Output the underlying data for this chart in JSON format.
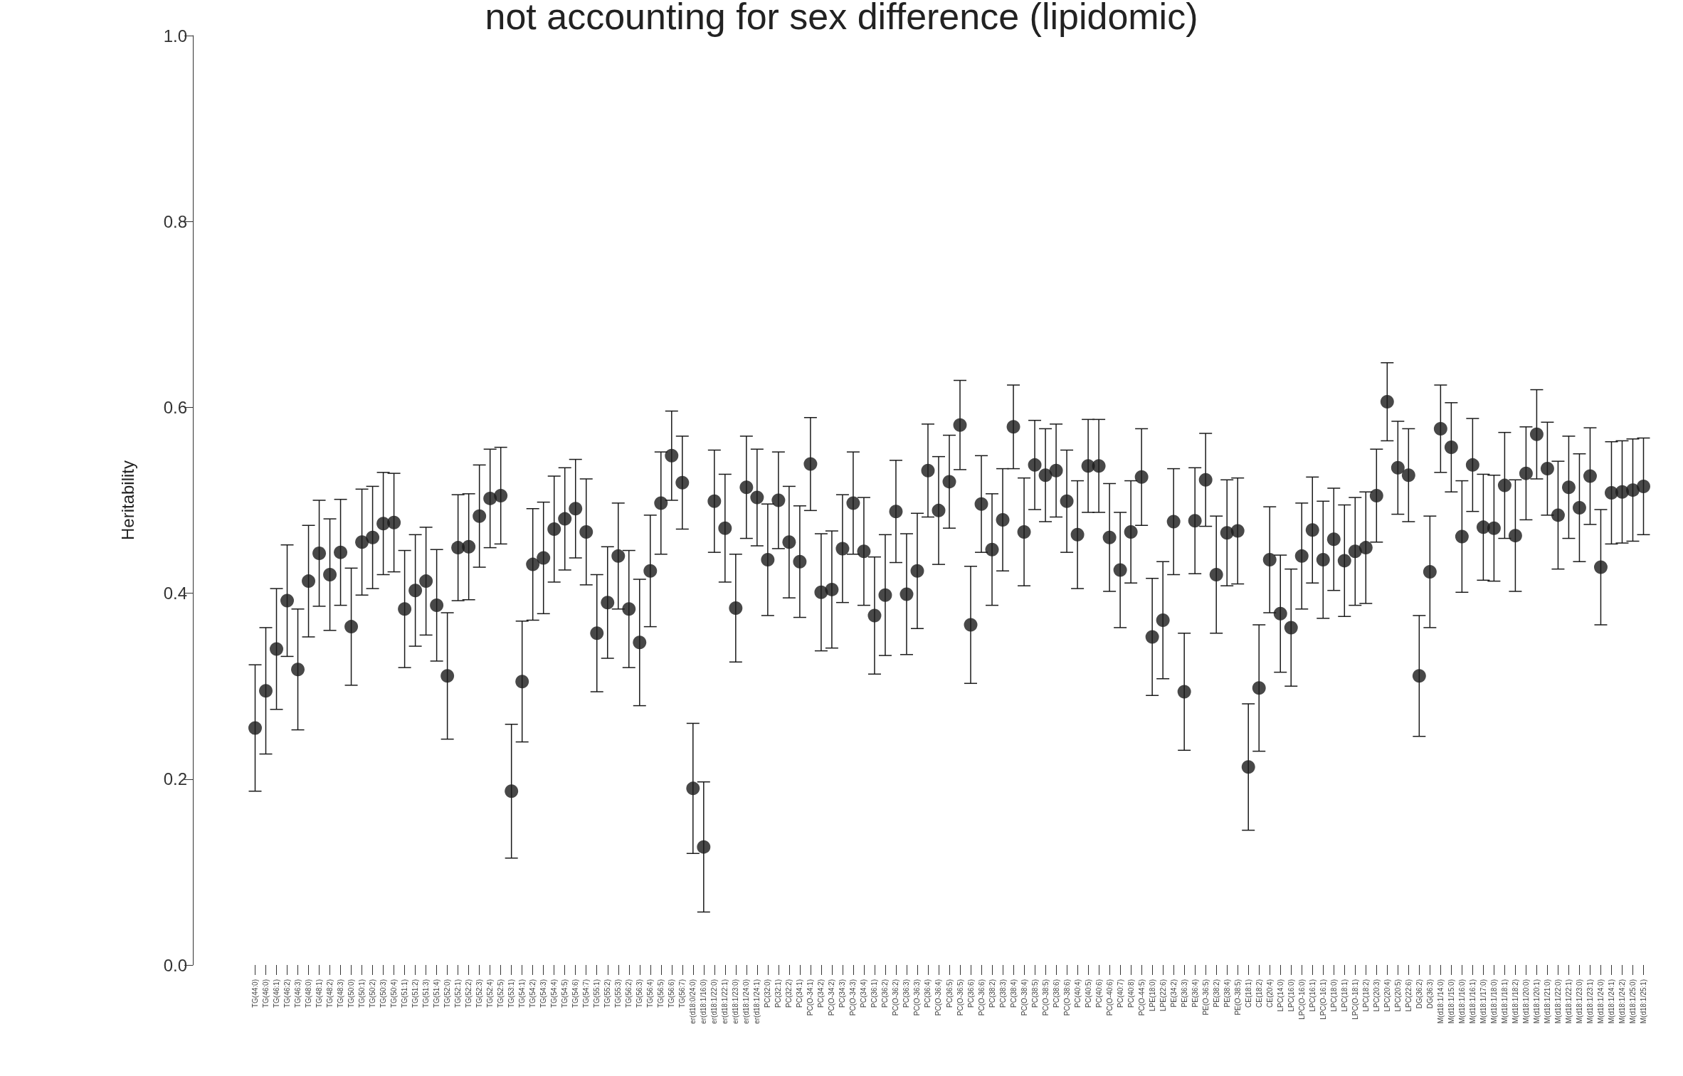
{
  "chart_data": {
    "type": "scatter",
    "title": "not accounting for sex difference (lipidomic)",
    "ylabel": "Heritability",
    "categories": [
      "TG(44:0)",
      "TG(46:0)",
      "TG(46:1)",
      "TG(46:2)",
      "TG(46:3)",
      "TG(48:0)",
      "TG(48:1)",
      "TG(48:2)",
      "TG(48:3)",
      "TG(50:0)",
      "TG(50:1)",
      "TG(50:2)",
      "TG(50:3)",
      "TG(50:4)",
      "TG(51:1)",
      "TG(51:2)",
      "TG(51:3)",
      "TG(51:4)",
      "TG(52:0)",
      "TG(52:1)",
      "TG(52:2)",
      "TG(52:3)",
      "TG(52:4)",
      "TG(52:5)",
      "TG(53:1)",
      "TG(54:1)",
      "TG(54:2)",
      "TG(54:3)",
      "TG(54:4)",
      "TG(54:5)",
      "TG(54:6)",
      "TG(54:7)",
      "TG(55:1)",
      "TG(55:2)",
      "TG(55:3)",
      "TG(56:2)",
      "TG(56:3)",
      "TG(56:4)",
      "TG(56:5)",
      "TG(56:6)",
      "TG(56:7)",
      "er(d18:0/24:0)",
      "er(d18:1/16:0)",
      "er(d18:1/22:0)",
      "er(d18:1/22:1)",
      "er(d18:1/23:0)",
      "er(d18:1/24:0)",
      "er(d18:1/24:1)",
      "PC(32:0)",
      "PC(32:1)",
      "PC(32:2)",
      "PC(34:1)",
      "PC(O-34:1)",
      "PC(34:2)",
      "PC(O-34:2)",
      "PC(34:3)",
      "PC(O-34:3)",
      "PC(34:4)",
      "PC(36:1)",
      "PC(36:2)",
      "PC(O-36:2)",
      "PC(36:3)",
      "PC(O-36:3)",
      "PC(36:4)",
      "PC(O-36:4)",
      "PC(36:5)",
      "PC(O-36:5)",
      "PC(36:6)",
      "PC(O-36:6)",
      "PC(38:2)",
      "PC(38:3)",
      "PC(38:4)",
      "PC(O-38:4)",
      "PC(38:5)",
      "PC(O-38:5)",
      "PC(38:6)",
      "PC(O-38:6)",
      "PC(40:4)",
      "PC(40:5)",
      "PC(40:6)",
      "PC(O-40:6)",
      "PC(40:7)",
      "PC(40:8)",
      "PC(O-44:5)",
      "LPE(18:0)",
      "LPE(22:6)",
      "PE(34:2)",
      "PE(36:3)",
      "PE(36:4)",
      "PE(O-36:5)",
      "PE(38:2)",
      "PE(38:4)",
      "PE(O-38:5)",
      "CE(18:1)",
      "CE(18:2)",
      "CE(20:4)",
      "LPC(14:0)",
      "LPC(16:0)",
      "LPC(O-16:0)",
      "LPC(16:1)",
      "LPC(O-16:1)",
      "LPC(18:0)",
      "LPC(18:1)",
      "LPC(O-18:1)",
      "LPC(18:2)",
      "LPC(20:3)",
      "LPC(20:4)",
      "LPC(20:5)",
      "LPC(22:6)",
      "DG(36:2)",
      "DG(36:3)",
      "M(d18:1/14:0)",
      "M(d18:1/15:0)",
      "M(d18:1/16:0)",
      "M(d18:1/16:1)",
      "M(d18:1/17:0)",
      "M(d18:1/18:0)",
      "M(d18:1/18:1)",
      "M(d18:1/18:2)",
      "M(d18:1/20:0)",
      "M(d18:1/20:1)",
      "M(d18:1/21:0)",
      "M(d18:1/22:0)",
      "M(d18:1/22:1)",
      "M(d18:1/23:0)",
      "M(d18:1/23:1)",
      "M(d18:1/24:0)",
      "M(d18:1/24:1)",
      "M(d18:1/24:2)",
      "M(d18:1/25:0)",
      "M(d18:1/25:1)"
    ],
    "values": [
      0.255,
      0.295,
      0.34,
      0.392,
      0.318,
      0.413,
      0.443,
      0.42,
      0.444,
      0.364,
      0.455,
      0.46,
      0.475,
      0.476,
      0.383,
      0.403,
      0.413,
      0.387,
      0.311,
      0.449,
      0.45,
      0.483,
      0.502,
      0.505,
      0.187,
      0.305,
      0.431,
      0.438,
      0.469,
      0.48,
      0.491,
      0.466,
      0.357,
      0.39,
      0.44,
      0.383,
      0.347,
      0.424,
      0.497,
      0.548,
      0.519,
      0.19,
      0.127,
      0.499,
      0.47,
      0.384,
      0.514,
      0.503,
      0.436,
      0.5,
      0.455,
      0.434,
      0.539,
      0.401,
      0.404,
      0.448,
      0.497,
      0.445,
      0.376,
      0.398,
      0.488,
      0.399,
      0.424,
      0.532,
      0.489,
      0.52,
      0.581,
      0.366,
      0.496,
      0.447,
      0.479,
      0.579,
      0.466,
      0.538,
      0.527,
      0.532,
      0.499,
      0.463,
      0.537,
      0.537,
      0.46,
      0.425,
      0.466,
      0.525,
      0.353,
      0.371,
      0.477,
      0.294,
      0.478,
      0.522,
      0.42,
      0.465,
      0.467,
      0.213,
      0.298,
      0.436,
      0.378,
      0.363,
      0.44,
      0.468,
      0.436,
      0.458,
      0.435,
      0.445,
      0.449,
      0.505,
      0.606,
      0.535,
      0.527,
      0.311,
      0.423,
      0.577,
      0.557,
      0.461,
      0.538,
      0.471,
      0.47,
      0.516,
      0.462,
      0.529,
      0.571,
      0.534,
      0.484,
      0.514,
      0.492,
      0.526,
      0.428,
      0.508,
      0.509,
      0.511,
      0.515
    ],
    "errors": [
      0.068,
      0.068,
      0.065,
      0.06,
      0.065,
      0.06,
      0.057,
      0.06,
      0.057,
      0.063,
      0.057,
      0.055,
      0.055,
      0.053,
      0.063,
      0.06,
      0.058,
      0.06,
      0.068,
      0.057,
      0.057,
      0.055,
      0.053,
      0.052,
      0.072,
      0.065,
      0.06,
      0.06,
      0.057,
      0.055,
      0.053,
      0.057,
      0.063,
      0.06,
      0.057,
      0.063,
      0.068,
      0.06,
      0.055,
      0.048,
      0.05,
      0.07,
      0.07,
      0.055,
      0.058,
      0.058,
      0.055,
      0.052,
      0.06,
      0.052,
      0.06,
      0.06,
      0.05,
      0.063,
      0.063,
      0.058,
      0.055,
      0.058,
      0.063,
      0.065,
      0.055,
      0.065,
      0.062,
      0.05,
      0.058,
      0.05,
      0.048,
      0.063,
      0.052,
      0.06,
      0.055,
      0.045,
      0.058,
      0.048,
      0.05,
      0.05,
      0.055,
      0.058,
      0.05,
      0.05,
      0.058,
      0.062,
      0.055,
      0.052,
      0.063,
      0.063,
      0.057,
      0.063,
      0.057,
      0.05,
      0.063,
      0.057,
      0.057,
      0.068,
      0.068,
      0.057,
      0.063,
      0.063,
      0.057,
      0.057,
      0.063,
      0.055,
      0.06,
      0.058,
      0.06,
      0.05,
      0.042,
      0.05,
      0.05,
      0.065,
      0.06,
      0.047,
      0.048,
      0.06,
      0.05,
      0.057,
      0.057,
      0.057,
      0.06,
      0.05,
      0.048,
      0.05,
      0.058,
      0.055,
      0.058,
      0.052,
      0.062,
      0.055,
      0.055,
      0.055,
      0.052
    ],
    "color": "#1a1a1a",
    "marker": "circle",
    "ylim": [
      0,
      1
    ],
    "yticks": [
      {
        "value": 0,
        "label": "0.0"
      },
      {
        "value": 0.2,
        "label": "0.2"
      },
      {
        "value": 0.4,
        "label": "0.4"
      },
      {
        "value": 0.6,
        "label": "0.6"
      },
      {
        "value": 0.8,
        "label": "0.8"
      },
      {
        "value": 1,
        "label": "1.0"
      }
    ],
    "grid": false
  }
}
